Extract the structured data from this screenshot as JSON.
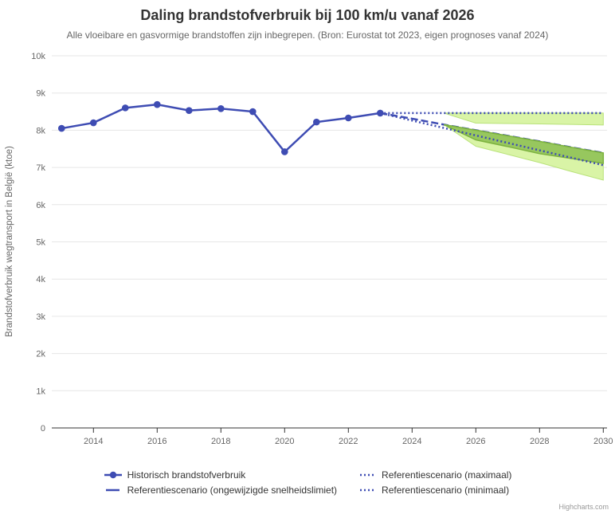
{
  "title": "Daling brandstofverbruik bij 100 km/u vanaf 2026",
  "subtitle": "Alle vloeibare en gasvormige brandstoffen zijn inbegrepen. (Bron: Eurostat tot 2023, eigen prognoses vanaf 2024)",
  "credits": "Highcharts.com",
  "colors": {
    "series_blue": "#3e4cb3",
    "band_light": "#d9f4a6",
    "band_light_edge": "#b9e27a",
    "band_dark": "#97c75e",
    "band_dark_edge": "#7cb23e",
    "grid": "#e6e6e6",
    "axis": "#333333",
    "label_text": "#666666"
  },
  "legend": {
    "items": [
      {
        "label": "Historisch brandstofverbruik",
        "symbol": "line-marker"
      },
      {
        "label": "Referentiescenario (ongewijzigde snelheidslimiet)",
        "symbol": "dash"
      },
      {
        "label": "Referentiescenario (maximaal)",
        "symbol": "dots"
      },
      {
        "label": "Referentiescenario (minimaal)",
        "symbol": "dots"
      }
    ]
  },
  "chart_data": {
    "type": "line",
    "title": "Daling brandstofverbruik bij 100 km/u vanaf 2026",
    "xlabel": "",
    "ylabel": "Brandstofverbruik wegtransport in België (ktoe)",
    "x_axis": {
      "ticks": [
        2014,
        2016,
        2018,
        2020,
        2022,
        2024,
        2026,
        2028,
        2030
      ],
      "range": [
        2013,
        2030
      ]
    },
    "y_axis": {
      "title": "Brandstofverbruik wegtransport in België (ktoe)",
      "ticks": [
        0,
        1000,
        2000,
        3000,
        4000,
        5000,
        6000,
        7000,
        8000,
        9000,
        10000
      ],
      "tick_labels": [
        "0",
        "1k",
        "2k",
        "3k",
        "4k",
        "5k",
        "6k",
        "7k",
        "8k",
        "9k",
        "10k"
      ],
      "range": [
        0,
        10000
      ],
      "grid": true
    },
    "legend_position": "bottom",
    "series": [
      {
        "id": "historisch",
        "name": "Historisch brandstofverbruik",
        "dash": "solid",
        "marker": true,
        "years": [
          2013,
          2014,
          2015,
          2016,
          2017,
          2018,
          2019,
          2020,
          2021,
          2022,
          2023
        ],
        "values": [
          8050,
          8200,
          8600,
          8690,
          8530,
          8580,
          8500,
          7420,
          8220,
          8330,
          8460
        ]
      },
      {
        "id": "referentie-centraal",
        "name": "Referentiescenario (ongewijzigde snelheidslimiet)",
        "dash": "dashed",
        "marker": false,
        "years": [
          2023,
          2024,
          2025,
          2026,
          2027,
          2028,
          2029,
          2030
        ],
        "values": [
          8460,
          8310,
          8150,
          8000,
          7850,
          7700,
          7540,
          7390
        ]
      },
      {
        "id": "referentie-maximaal",
        "name": "Referentiescenario (maximaal)",
        "dash": "dotted",
        "marker": false,
        "years": [
          2023,
          2024,
          2025,
          2026,
          2027,
          2028,
          2029,
          2030
        ],
        "values": [
          8460,
          8460,
          8460,
          8460,
          8460,
          8460,
          8460,
          8460
        ]
      },
      {
        "id": "referentie-minimaal",
        "name": "Referentiescenario (minimaal)",
        "dash": "dotted",
        "marker": false,
        "years": [
          2023,
          2024,
          2025,
          2026,
          2027,
          2028,
          2029,
          2030
        ],
        "values": [
          8460,
          8260,
          8060,
          7860,
          7660,
          7460,
          7260,
          7060
        ]
      }
    ],
    "bands": [
      {
        "id": "band-minimaal-100kmu",
        "shade": "light",
        "years": [
          2025,
          2026,
          2027,
          2028,
          2029,
          2030
        ],
        "upper": [
          8150,
          8000,
          7850,
          7700,
          7540,
          7390
        ],
        "lower": [
          8150,
          7570,
          7350,
          7130,
          6890,
          6660
        ]
      },
      {
        "id": "band-centraal-100kmu",
        "shade": "dark",
        "years": [
          2025,
          2026,
          2027,
          2028,
          2029,
          2030
        ],
        "upper": [
          8150,
          8000,
          7850,
          7700,
          7540,
          7390
        ],
        "lower": [
          8150,
          7740,
          7560,
          7370,
          7240,
          7110
        ]
      },
      {
        "id": "band-maximaal-100kmu",
        "shade": "light",
        "years": [
          2025,
          2026,
          2027,
          2028,
          2029,
          2030
        ],
        "upper": [
          8460,
          8460,
          8460,
          8460,
          8460,
          8460
        ],
        "lower": [
          8460,
          8190,
          8180,
          8170,
          8155,
          8140
        ]
      }
    ]
  }
}
